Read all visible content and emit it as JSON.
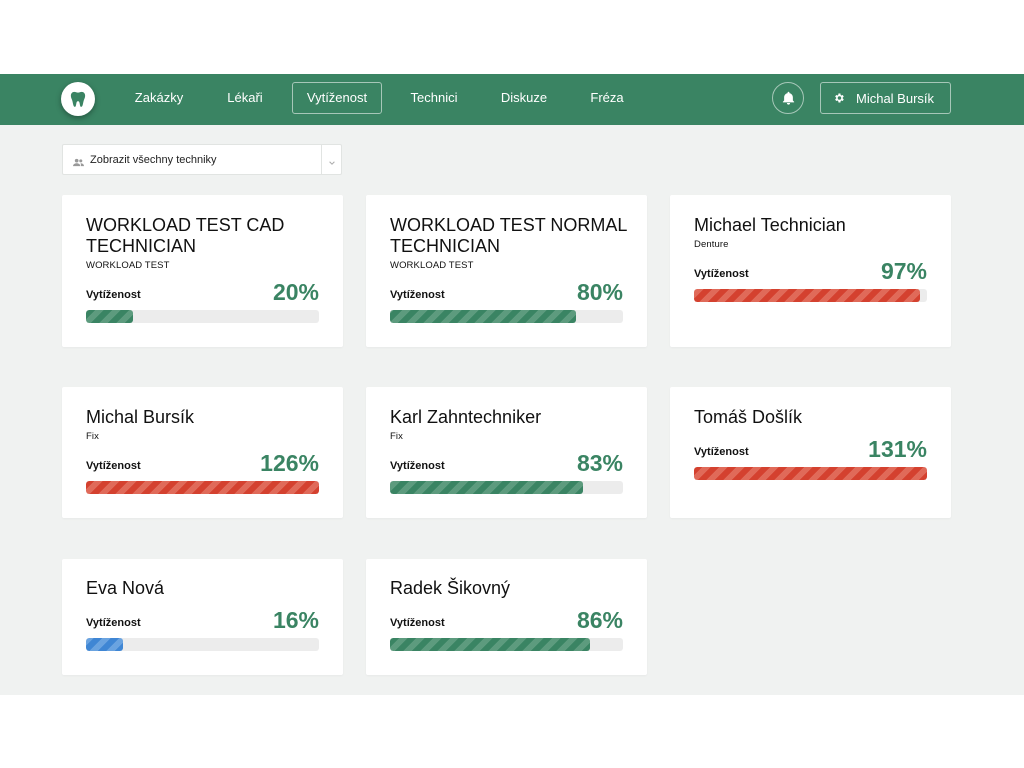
{
  "header": {
    "logo_icon": "tooth-icon",
    "nav": [
      {
        "label": "Zakázky"
      },
      {
        "label": "Lékaři"
      },
      {
        "label": "Vytíženost",
        "active": true
      },
      {
        "label": "Technici"
      },
      {
        "label": "Diskuze"
      },
      {
        "label": "Fréza"
      }
    ],
    "bell_icon": "bell-icon",
    "user": {
      "icon": "gear-icon",
      "name": "Michal Bursík"
    },
    "color": "#3a8463"
  },
  "filter": {
    "icon": "people-icon",
    "label": "Zobrazit všechny techniky"
  },
  "workload_label": "Vytíženost",
  "colors": {
    "green": "#3a8463",
    "red": "#d4412f",
    "blue": "#3f86d4",
    "track": "#ececec"
  },
  "technicians": [
    {
      "name": "WORKLOAD TEST CAD TECHNICIAN",
      "sub": "WORKLOAD TEST",
      "percent_label": "20%",
      "fill_percent": 20,
      "status": "green"
    },
    {
      "name": "WORKLOAD TEST NORMAL TECHNICIAN",
      "sub": "WORKLOAD TEST",
      "percent_label": "80%",
      "fill_percent": 80,
      "status": "green"
    },
    {
      "name": "Michael Technician",
      "sub": "Denture",
      "percent_label": "97%",
      "fill_percent": 97,
      "status": "red"
    },
    {
      "name": "Michal Bursík",
      "sub": "Fix",
      "percent_label": "126%",
      "fill_percent": 100,
      "status": "red"
    },
    {
      "name": "Karl Zahntechniker",
      "sub": "Fix",
      "percent_label": "83%",
      "fill_percent": 83,
      "status": "green"
    },
    {
      "name": "Tomáš Došlík",
      "sub": "",
      "percent_label": "131%",
      "fill_percent": 100,
      "status": "red"
    },
    {
      "name": "Eva Nová",
      "sub": "",
      "percent_label": "16%",
      "fill_percent": 16,
      "status": "blue"
    },
    {
      "name": "Radek Šikovný",
      "sub": "",
      "percent_label": "86%",
      "fill_percent": 86,
      "status": "green"
    }
  ]
}
